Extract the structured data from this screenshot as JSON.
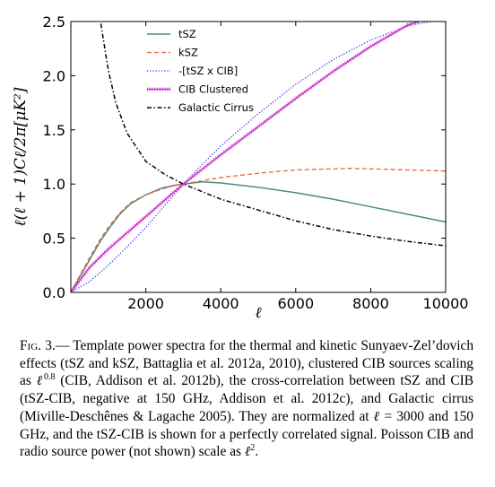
{
  "chart_data": {
    "type": "line",
    "title": "",
    "xlabel": "ℓ",
    "ylabel": "ℓ(ℓ + 1)Cℓ/2π[μK²]",
    "xlim": [
      0,
      10000
    ],
    "ylim": [
      0,
      2.5
    ],
    "xticks": [
      2000,
      4000,
      6000,
      8000,
      10000
    ],
    "yticks": [
      0.0,
      0.5,
      1.0,
      1.5,
      2.0,
      2.5
    ],
    "xtick_labels": [
      "2000",
      "4000",
      "6000",
      "8000",
      "10000"
    ],
    "ytick_labels": [
      "0.0",
      "0.5",
      "1.0",
      "1.5",
      "2.0",
      "2.5"
    ],
    "grid": false,
    "legend_position": "top-center",
    "series": [
      {
        "name": "tSZ",
        "color": "#4a8a7d",
        "style": "solid",
        "x": [
          0,
          200,
          500,
          800,
          1000,
          1300,
          1600,
          2000,
          2400,
          2800,
          3000,
          3500,
          4000,
          5000,
          6000,
          7000,
          8000,
          9000,
          10000
        ],
        "y": [
          0,
          0.12,
          0.3,
          0.48,
          0.58,
          0.72,
          0.82,
          0.9,
          0.96,
          0.99,
          1.0,
          1.02,
          1.01,
          0.97,
          0.92,
          0.86,
          0.79,
          0.72,
          0.65
        ]
      },
      {
        "name": "kSZ",
        "color": "#e8663f",
        "style": "dashed",
        "x": [
          0,
          200,
          500,
          800,
          1000,
          1300,
          1600,
          2000,
          2400,
          2800,
          3000,
          3500,
          4000,
          5000,
          6000,
          7000,
          7500,
          8000,
          9000,
          10000
        ],
        "y": [
          0,
          0.13,
          0.32,
          0.5,
          0.6,
          0.73,
          0.83,
          0.9,
          0.95,
          0.99,
          1.0,
          1.03,
          1.06,
          1.1,
          1.13,
          1.14,
          1.145,
          1.14,
          1.13,
          1.12
        ]
      },
      {
        "name": "-[tSZ x CIB]",
        "color": "#3333dd",
        "style": "dotted",
        "x": [
          0,
          500,
          1000,
          1500,
          2000,
          2500,
          3000,
          3500,
          4000,
          5000,
          6000,
          7000,
          8000,
          9000,
          9600
        ],
        "y": [
          0,
          0.1,
          0.25,
          0.42,
          0.6,
          0.8,
          1.0,
          1.18,
          1.35,
          1.65,
          1.92,
          2.15,
          2.33,
          2.46,
          2.5
        ]
      },
      {
        "name": "CIB Clustered",
        "color": "#cc33cc",
        "style": "solid-hatched",
        "x": [
          0,
          500,
          1000,
          1500,
          2000,
          2500,
          3000,
          4000,
          5000,
          6000,
          7000,
          8000,
          9000,
          9300
        ],
        "y": [
          0,
          0.23,
          0.4,
          0.55,
          0.7,
          0.85,
          1.0,
          1.27,
          1.53,
          1.79,
          2.04,
          2.27,
          2.47,
          2.5
        ]
      },
      {
        "name": "Galactic Cirrus",
        "color": "#000000",
        "style": "dash-dot",
        "x": [
          800,
          1000,
          1200,
          1500,
          2000,
          2500,
          3000,
          4000,
          5000,
          6000,
          7000,
          8000,
          9000,
          10000
        ],
        "y": [
          2.48,
          2.05,
          1.75,
          1.47,
          1.21,
          1.09,
          1.0,
          0.86,
          0.76,
          0.66,
          0.58,
          0.52,
          0.47,
          0.43
        ]
      }
    ]
  },
  "caption": {
    "lead": "Fig. 3.—",
    "p1": " Template power spectra for the thermal and kinetic Sunyaev-Zel’dovich effects (tSZ and kSZ, Battaglia et al. 2012a, 2010), clustered CIB sources scaling as ",
    "ell1": "ℓ",
    "exp1": "0.8",
    "p2": " (CIB, Addison et al. 2012b), the cross-correlation between tSZ and CIB (tSZ-CIB, negative at 150 GHz, Addison et al. 2012c), and Galactic cirrus (Miville-Deschênes & Lagache 2005). They are normalized at ",
    "ell2": "ℓ",
    "p3": " = 3000 and 150 GHz, and the tSZ-CIB is shown for a perfectly correlated signal. Poisson CIB and radio source power (not shown) scale as ",
    "ell3": "ℓ",
    "exp3": "2",
    "p4": "."
  }
}
